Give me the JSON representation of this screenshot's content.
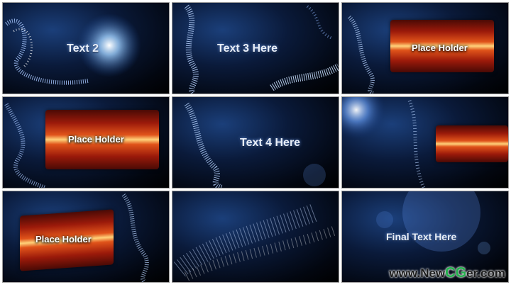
{
  "frames": [
    {
      "caption": "Text 2"
    },
    {
      "caption": "Text 3 Here"
    },
    {
      "caption": "Place Holder"
    },
    {
      "caption": "Place Holder"
    },
    {
      "caption": "Text 4 Here"
    },
    {
      "caption": ""
    },
    {
      "caption": "Place Holder"
    },
    {
      "caption": ""
    },
    {
      "caption": "Final Text Here"
    }
  ],
  "watermark": {
    "prefix": "www.",
    "part1": "New",
    "part2": "C",
    "part3": "G",
    "part4": "er",
    "suffix": ".com"
  }
}
